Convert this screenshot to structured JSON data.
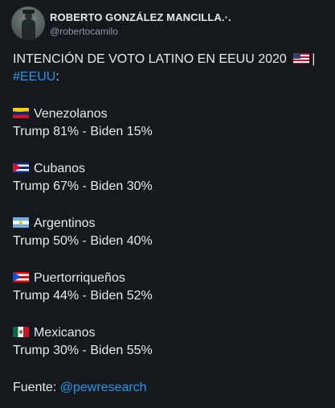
{
  "author": {
    "name": "ROBERTO GONZÁLEZ MANCILLA.·.",
    "handle": "@robertocamilo"
  },
  "tweet": {
    "title": "INTENCIÓN DE VOTO LATINO EN EEUU 2020",
    "title_suffix": "|",
    "hashtag": "#EEUU",
    "hashtag_suffix": ":",
    "groups": [
      {
        "flag": "venezuela-flag-icon",
        "name": "Venezolanos",
        "result": "Trump 81% - Biden 15%"
      },
      {
        "flag": "cuba-flag-icon",
        "name": "Cubanos",
        "result": "Trump 67% - Biden 30%"
      },
      {
        "flag": "argentina-flag-icon",
        "name": "Argentinos",
        "result": "Trump 50% - Biden 40%"
      },
      {
        "flag": "puerto-rico-flag-icon",
        "name": "Puertorriqueños",
        "result": "Trump 44% - Biden 52%"
      },
      {
        "flag": "mexico-flag-icon",
        "name": "Mexicanos",
        "result": "Trump 30% - Biden 55%"
      }
    ],
    "source_label": "Fuente:",
    "source_link": "@pewresearch"
  },
  "colors": {
    "background": "#15181c",
    "text": "#e7e9ea",
    "secondary": "#8b98a5",
    "link": "#1d9bf0"
  }
}
